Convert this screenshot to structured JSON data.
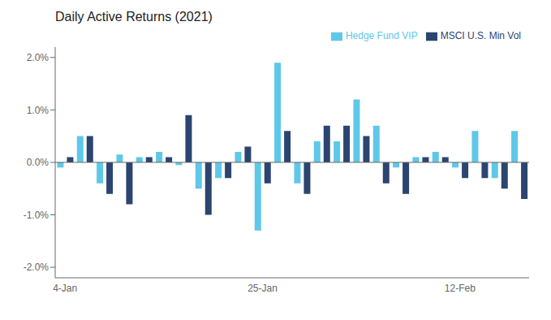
{
  "chart_data": {
    "type": "bar",
    "title": "Daily Active Returns (2021)",
    "categories": [
      "4-Jan",
      null,
      null,
      null,
      null,
      null,
      null,
      null,
      null,
      null,
      "25-Jan",
      null,
      null,
      null,
      null,
      null,
      null,
      null,
      null,
      null,
      "12-Feb",
      null,
      null,
      null
    ],
    "series": [
      {
        "name": "Hedge Fund VIP",
        "color": "#5ec8e8",
        "values": [
          -0.001,
          0.005,
          -0.004,
          0.0015,
          0.001,
          0.002,
          -0.0005,
          -0.005,
          -0.003,
          0.002,
          -0.013,
          0.019,
          -0.004,
          0.004,
          0.004,
          0.012,
          0.007,
          -0.001,
          0.001,
          0.002,
          -0.001,
          0.006,
          -0.003,
          0.006
        ]
      },
      {
        "name": "MSCI U.S. Min Vol",
        "color": "#2b4570",
        "values": [
          0.001,
          0.005,
          -0.006,
          -0.008,
          0.001,
          0.001,
          0.009,
          -0.01,
          -0.003,
          0.003,
          -0.004,
          0.006,
          -0.006,
          0.007,
          0.007,
          0.005,
          -0.004,
          -0.006,
          0.001,
          0.001,
          -0.003,
          -0.003,
          -0.005,
          -0.007
        ]
      }
    ],
    "ylim": [
      -0.022,
      0.022
    ],
    "yticks": [
      {
        "value": -0.02,
        "label": "-2.0%"
      },
      {
        "value": -0.01,
        "label": "-1.0%"
      },
      {
        "value": 0.0,
        "label": "0.0%"
      },
      {
        "value": 0.01,
        "label": "1.0%"
      },
      {
        "value": 0.02,
        "label": "2.0%"
      }
    ],
    "grid": false,
    "legend": "upper right"
  }
}
